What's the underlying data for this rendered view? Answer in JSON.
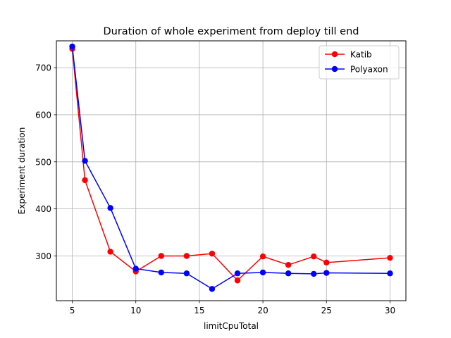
{
  "chart_data": {
    "type": "line",
    "title": "Duration of whole experiment from deploy till end",
    "xlabel": "limitCpuTotal",
    "ylabel": "Experiment duration",
    "xlim": [
      3.75,
      31.25
    ],
    "ylim": [
      205,
      757
    ],
    "xticks": [
      5,
      10,
      15,
      20,
      25,
      30
    ],
    "yticks": [
      300,
      400,
      500,
      600,
      700
    ],
    "grid": true,
    "legend": "top-right",
    "series": [
      {
        "name": "Katib",
        "color": "#ff0000",
        "x": [
          5,
          6,
          8,
          10,
          12,
          14,
          16,
          18,
          20,
          22,
          24,
          25,
          30
        ],
        "y": [
          740,
          461,
          309,
          267,
          300,
          300,
          305,
          248,
          299,
          281,
          299,
          286,
          296
        ]
      },
      {
        "name": "Polyaxon",
        "color": "#0000ff",
        "x": [
          5,
          6,
          8,
          10,
          12,
          14,
          16,
          18,
          20,
          22,
          24,
          25,
          30
        ],
        "y": [
          745,
          502,
          402,
          273,
          265,
          263,
          230,
          263,
          265,
          263,
          262,
          264,
          263
        ]
      }
    ]
  }
}
